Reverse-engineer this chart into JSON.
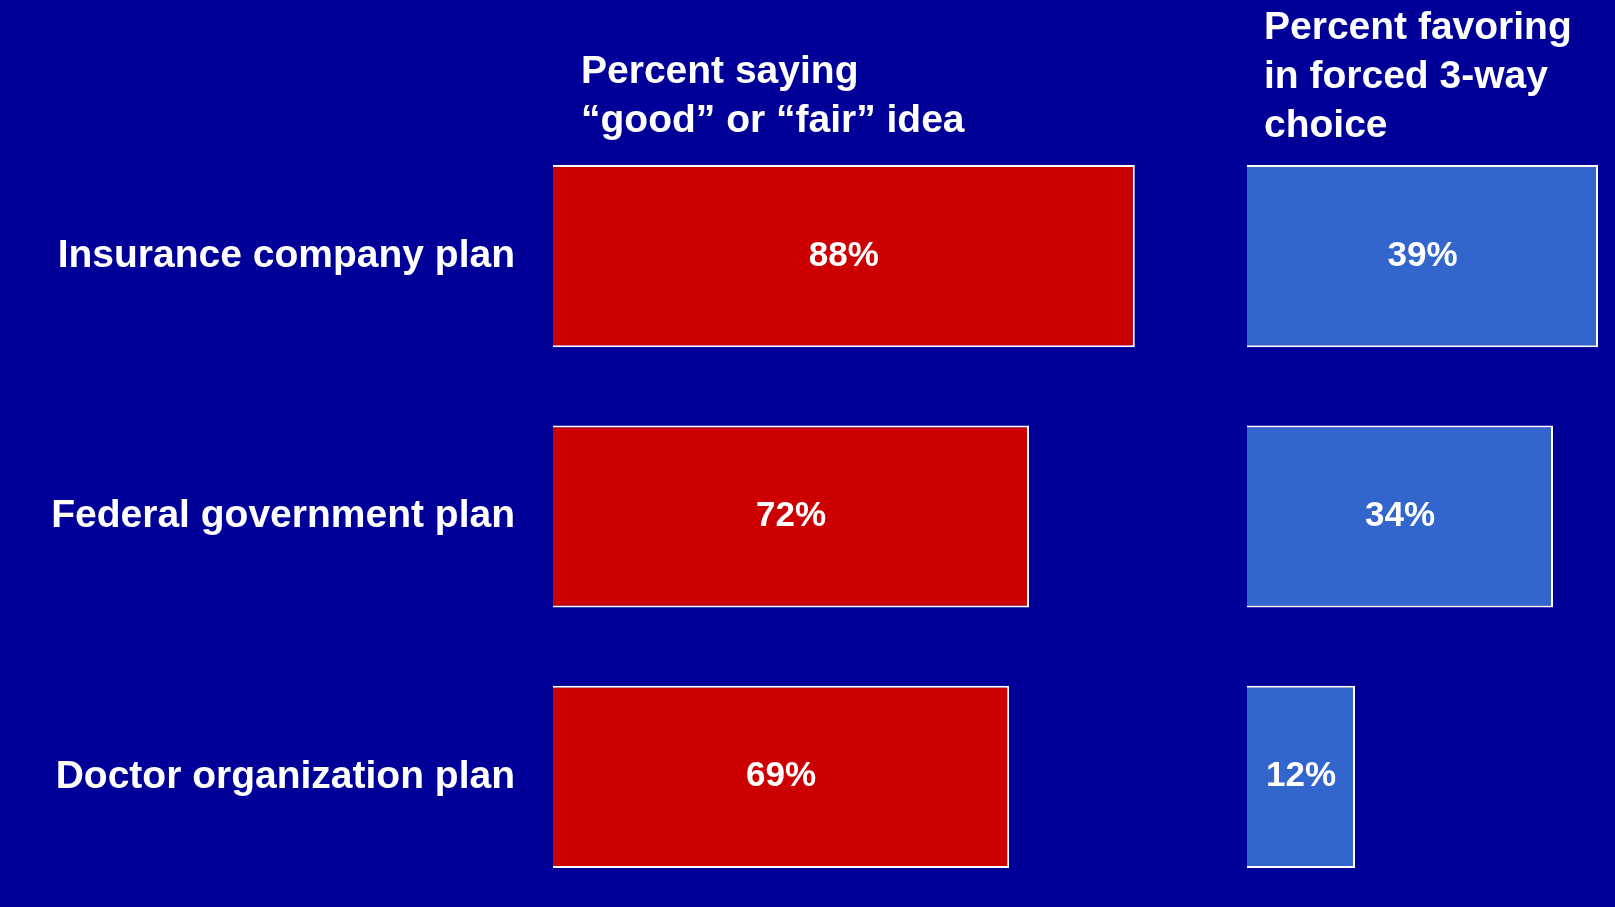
{
  "chart_data": [
    {
      "type": "bar",
      "orientation": "horizontal",
      "title": "Percent saying\n“good” or “fair” idea",
      "categories": [
        "Insurance company plan",
        "Federal government plan",
        "Doctor organization plan"
      ],
      "values": [
        88,
        72,
        69
      ],
      "value_labels": [
        "88%",
        "72%",
        "69%"
      ],
      "color": "#cc0000"
    },
    {
      "type": "bar",
      "orientation": "horizontal",
      "title": "Percent favoring\nin forced 3-way\nchoice",
      "categories": [
        null,
        null,
        null
      ],
      "values": [
        39,
        34,
        12
      ],
      "value_labels": [
        "39%",
        "34%",
        "12%"
      ],
      "color": "#3366cc"
    }
  ]
}
